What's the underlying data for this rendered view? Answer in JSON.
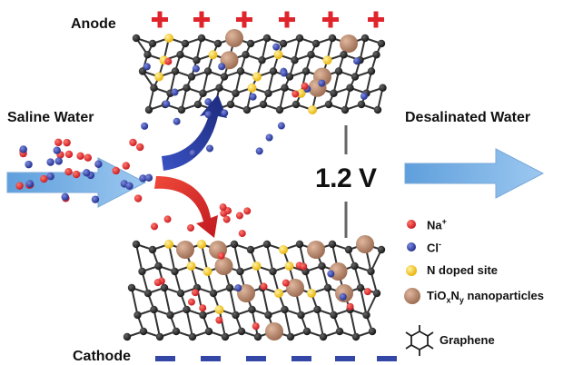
{
  "labels": {
    "anode": "Anode",
    "cathode": "Cathode",
    "saline_water": "Saline Water",
    "desalinated_water": "Desalinated Water",
    "voltage": "1.2 V"
  },
  "legend": {
    "na": {
      "text": "Na",
      "sup": "+",
      "color": "#e0242b"
    },
    "cl": {
      "text": "Cl",
      "sup": "-",
      "color": "#2d3c9a"
    },
    "n_doped": {
      "text": "N doped site",
      "color": "#f5c21b"
    },
    "tio": {
      "pre": "TiO",
      "sub1": "x",
      "mid": "N",
      "sub2": "y",
      "post": " nanoparticles",
      "color": "#b9876a"
    },
    "graphene": {
      "text": "Graphene",
      "color": "#222222"
    }
  },
  "colors": {
    "plus_sign": "#e0242b",
    "minus_sign": "#3446a6",
    "flow_arrow": "#7fb3e6",
    "anode_arrow": "#2c3ea0",
    "cathode_arrow": "#d8262c",
    "wire": "#666666"
  }
}
